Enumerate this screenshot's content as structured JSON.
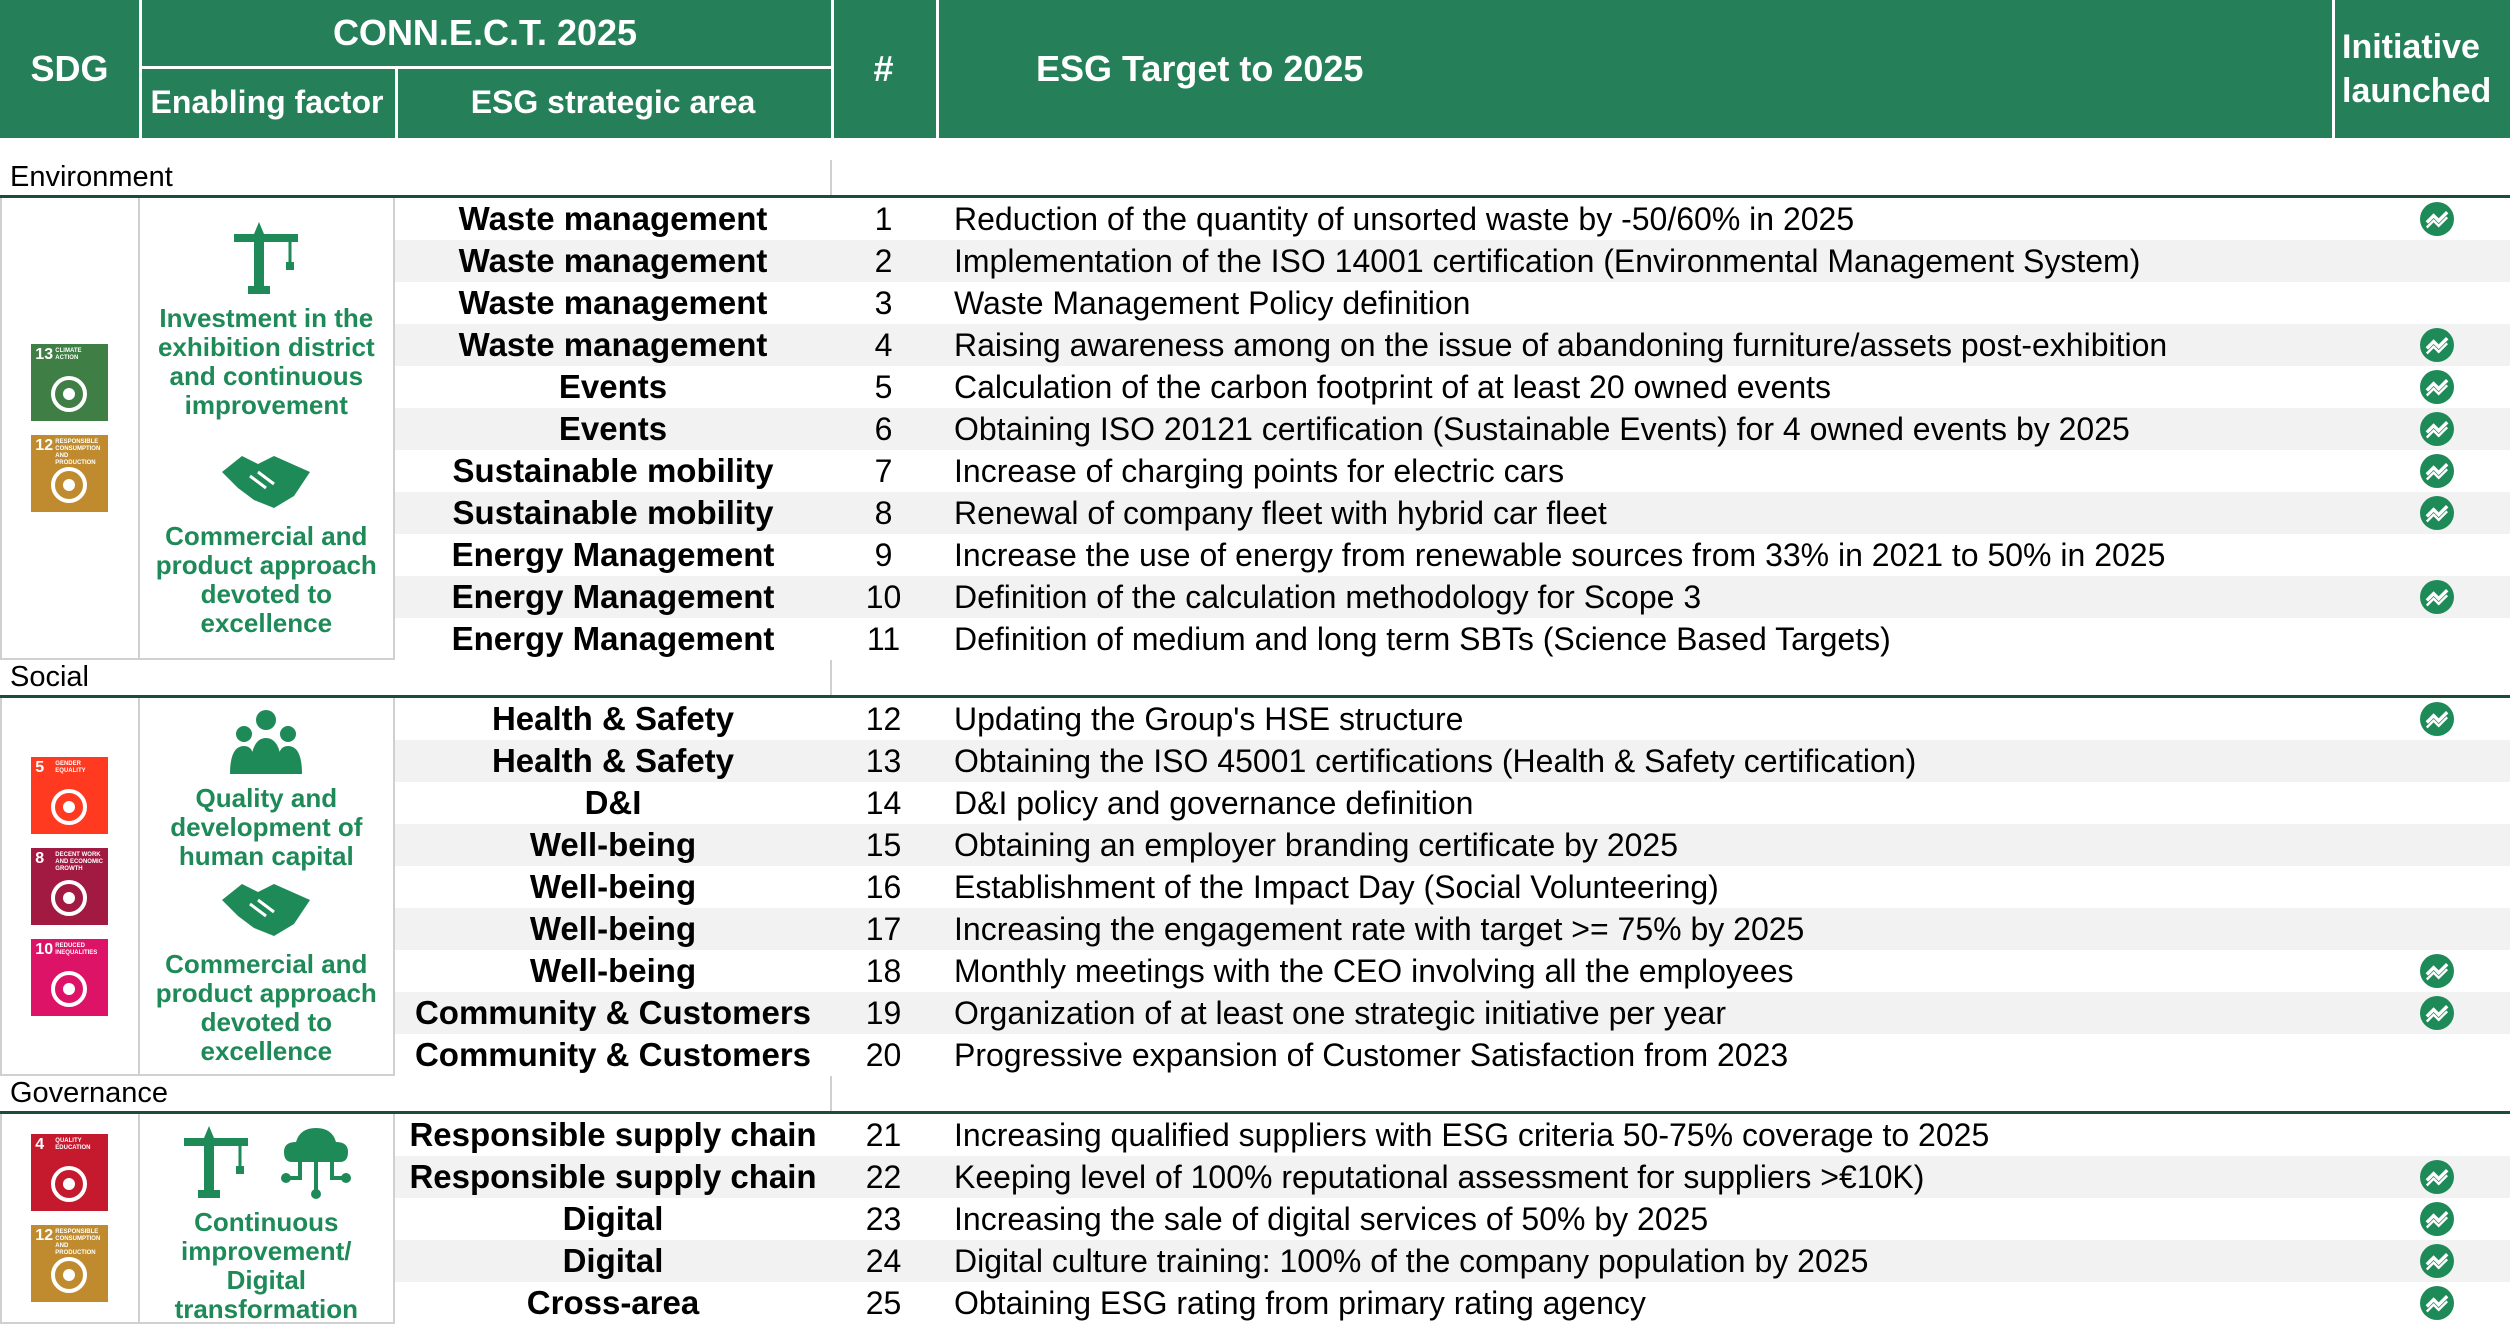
{
  "header": {
    "sdg": "SDG",
    "connect": "CONN.E.C.T. 2025",
    "enabling_factor": "Enabling factor",
    "strategic_area": "ESG strategic area",
    "number": "#",
    "target": "ESG Target to 2025",
    "initiative": "Initiative launched"
  },
  "sections": [
    {
      "label": "Environment",
      "sdgs": [
        {
          "number": 13,
          "label": "CLIMATE ACTION",
          "color": "#3f7e44"
        },
        {
          "number": 12,
          "label": "RESPONSIBLE CONSUMPTION AND PRODUCTION",
          "color": "#bf8b2e"
        }
      ],
      "enabling_factors": [
        "Investment in the exhibition district and continuous improvement",
        "Commercial and product approach devoted to excellence"
      ],
      "rows": [
        {
          "area": "Waste management",
          "number": 1,
          "target": "Reduction of the quantity of unsorted waste by -50/60% in 2025",
          "launched": true
        },
        {
          "area": "Waste management",
          "number": 2,
          "target": "Implementation of the ISO 14001 certification (Environmental Management System)",
          "launched": false
        },
        {
          "area": "Waste management",
          "number": 3,
          "target": "Waste Management Policy definition",
          "launched": false
        },
        {
          "area": "Waste management",
          "number": 4,
          "target": "Raising awareness among on the issue of abandoning furniture/assets post-exhibition",
          "launched": true
        },
        {
          "area": "Events",
          "number": 5,
          "target": "Calculation of the carbon footprint of at least 20 owned events",
          "launched": true
        },
        {
          "area": "Events",
          "number": 6,
          "target": "Obtaining ISO 20121 certification (Sustainable Events) for 4 owned events by 2025",
          "launched": true
        },
        {
          "area": "Sustainable mobility",
          "number": 7,
          "target": "Increase of charging points for electric cars",
          "launched": true
        },
        {
          "area": "Sustainable mobility",
          "number": 8,
          "target": "Renewal of company fleet with hybrid car fleet",
          "launched": true
        },
        {
          "area": "Energy Management",
          "number": 9,
          "target": "Increase the use of energy from renewable sources from 33% in 2021 to 50% in 2025",
          "launched": false
        },
        {
          "area": "Energy Management",
          "number": 10,
          "target": "Definition of the calculation methodology for Scope 3",
          "launched": true
        },
        {
          "area": "Energy Management",
          "number": 11,
          "target": "Definition of medium and long term SBTs (Science Based Targets)",
          "launched": false
        }
      ]
    },
    {
      "label": "Social",
      "sdgs": [
        {
          "number": 5,
          "label": "GENDER EQUALITY",
          "color": "#ff3a21"
        },
        {
          "number": 8,
          "label": "DECENT WORK AND ECONOMIC GROWTH",
          "color": "#a21942"
        },
        {
          "number": 10,
          "label": "REDUCED INEQUALITIES",
          "color": "#dd1367"
        }
      ],
      "enabling_factors": [
        "Quality and development of human capital",
        "Commercial and product approach devoted to excellence"
      ],
      "rows": [
        {
          "area": "Health & Safety",
          "number": 12,
          "target": "Updating the Group's HSE structure",
          "launched": true
        },
        {
          "area": "Health & Safety",
          "number": 13,
          "target": "Obtaining the ISO 45001 certifications (Health & Safety certification)",
          "launched": false
        },
        {
          "area": "D&I",
          "number": 14,
          "target": "D&I policy and governance definition",
          "launched": false
        },
        {
          "area": "Well-being",
          "number": 15,
          "target": "Obtaining an employer branding certificate by 2025",
          "launched": false
        },
        {
          "area": "Well-being",
          "number": 16,
          "target": "Establishment of the Impact Day (Social Volunteering)",
          "launched": false
        },
        {
          "area": "Well-being",
          "number": 17,
          "target": "Increasing the engagement rate with target >= 75% by 2025",
          "launched": false
        },
        {
          "area": "Well-being",
          "number": 18,
          "target": "Monthly meetings with the CEO involving all the employees",
          "launched": true
        },
        {
          "area": "Community & Customers",
          "number": 19,
          "target": "Organization of at least one strategic initiative per year",
          "launched": true
        },
        {
          "area": "Community & Customers",
          "number": 20,
          "target": "Progressive expansion of Customer Satisfaction from 2023",
          "launched": false
        }
      ]
    },
    {
      "label": "Governance",
      "sdgs": [
        {
          "number": 4,
          "label": "QUALITY EDUCATION",
          "color": "#c5192d"
        },
        {
          "number": 12,
          "label": "RESPONSIBLE CONSUMPTION AND PRODUCTION",
          "color": "#bf8b2e"
        }
      ],
      "enabling_factors": [
        "Continuous improvement/ Digital transformation"
      ],
      "rows": [
        {
          "area": "Responsible supply chain",
          "number": 21,
          "target": "Increasing qualified suppliers with ESG criteria 50-75% coverage to 2025",
          "launched": false
        },
        {
          "area": "Responsible supply chain",
          "number": 22,
          "target": "Keeping level of 100% reputational assessment for suppliers >€10K)",
          "launched": true
        },
        {
          "area": "Digital",
          "number": 23,
          "target": "Increasing the sale of digital services of 50% by 2025",
          "launched": true
        },
        {
          "area": "Digital",
          "number": 24,
          "target": "Digital culture training: 100% of the company population by 2025",
          "launched": true
        },
        {
          "area": "Cross-area",
          "number": 25,
          "target": "Obtaining ESG rating from primary rating agency",
          "launched": true
        }
      ]
    }
  ]
}
